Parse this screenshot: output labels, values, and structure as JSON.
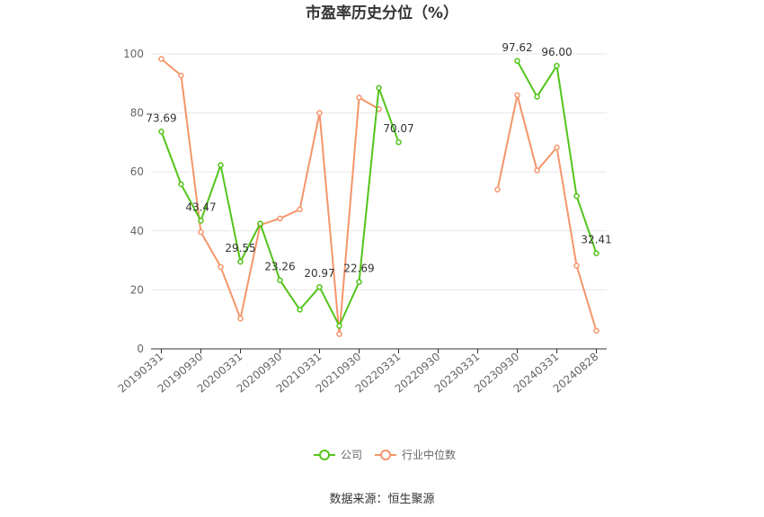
{
  "chart_data": {
    "type": "line",
    "title": "市盈率历史分位（%）",
    "xlabel": "",
    "ylabel": "",
    "ylim": [
      0,
      100
    ],
    "yticks": [
      0,
      20,
      40,
      60,
      80,
      100
    ],
    "grid": true,
    "legend_position": "bottom",
    "categories": [
      "20190331",
      "20190630",
      "20190930",
      "20191231",
      "20200331",
      "20200630",
      "20200930",
      "20201231",
      "20210331",
      "20210630",
      "20210930",
      "20211231",
      "20220331",
      "20220630",
      "20220930",
      "20221231",
      "20230331",
      "20230630",
      "20230930",
      "20231231",
      "20240331",
      "20240630",
      "20240828"
    ],
    "x_tick_labels": [
      "20190331",
      "20190930",
      "20200331",
      "20200930",
      "20210331",
      "20210930",
      "20220331",
      "20220930",
      "20230331",
      "20230930",
      "20240331",
      "20240828"
    ],
    "series": [
      {
        "name": "公司",
        "color": "#52c41a",
        "values": [
          73.69,
          55.8,
          43.47,
          62.3,
          29.55,
          42.5,
          23.26,
          13.3,
          20.97,
          7.8,
          22.69,
          88.5,
          70.07,
          null,
          null,
          null,
          null,
          null,
          97.62,
          85.5,
          96.0,
          51.8,
          32.41
        ],
        "labeled": {
          "0": "73.69",
          "2": "43.47",
          "4": "29.55",
          "6": "23.26",
          "8": "20.97",
          "10": "22.69",
          "12": "70.07",
          "18": "97.62",
          "20": "96.00",
          "22": "32.41"
        }
      },
      {
        "name": "行业中位数",
        "color": "#f4956a",
        "values": [
          98.3,
          92.7,
          39.6,
          27.8,
          10.3,
          42.0,
          44.2,
          47.3,
          80.0,
          5.0,
          85.2,
          81.3,
          null,
          null,
          null,
          null,
          null,
          54.0,
          86.0,
          60.5,
          68.3,
          28.2,
          6.1
        ]
      }
    ],
    "source": "数据来源：恒生聚源"
  }
}
